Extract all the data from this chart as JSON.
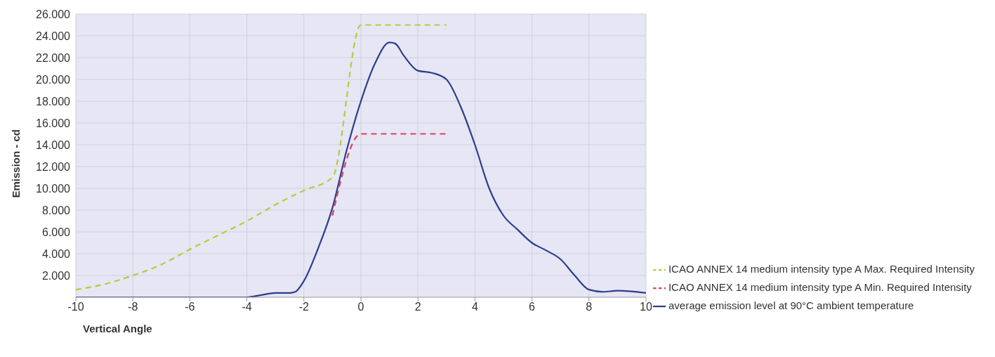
{
  "chart_data": {
    "type": "line",
    "xlabel": "Vertical Angle",
    "ylabel": "Emission - cd",
    "xlim": [
      -10,
      10
    ],
    "xticks": [
      -10,
      -8,
      -6,
      -4,
      -2,
      0,
      2,
      4,
      6,
      8,
      10
    ],
    "ylim": [
      0,
      26000
    ],
    "yticks": [
      {
        "value": 2000,
        "label": "2.000"
      },
      {
        "value": 4000,
        "label": "4.000"
      },
      {
        "value": 6000,
        "label": "6.000"
      },
      {
        "value": 8000,
        "label": "8.000"
      },
      {
        "value": 10000,
        "label": "10.000"
      },
      {
        "value": 12000,
        "label": "12.000"
      },
      {
        "value": 14000,
        "label": "14.000"
      },
      {
        "value": 16000,
        "label": "16.000"
      },
      {
        "value": 18000,
        "label": "18.000"
      },
      {
        "value": 20000,
        "label": "20.000"
      },
      {
        "value": 22000,
        "label": "22.000"
      },
      {
        "value": 24000,
        "label": "24.000"
      },
      {
        "value": 26000,
        "label": "26.000"
      }
    ],
    "grid": true,
    "legend": "right",
    "marker": "none",
    "series": [
      {
        "name": "average emission level at 90°C ambient temperature",
        "color": "#2c3e8c",
        "line_style": "solid",
        "x": [
          -10,
          -4,
          -3.5,
          -3,
          -2.5,
          -2.3,
          -2,
          -1.5,
          -1,
          -0.5,
          0,
          0.5,
          1,
          1.2,
          1.5,
          2,
          2.5,
          3,
          3.5,
          4,
          4.5,
          5,
          5.5,
          6,
          6.5,
          7,
          7.5,
          8,
          8.5,
          9,
          10
        ],
        "values": [
          0,
          0,
          200,
          400,
          400,
          500,
          1500,
          4500,
          8200,
          13500,
          18000,
          21500,
          23400,
          23300,
          22200,
          20800,
          20600,
          20000,
          17500,
          14000,
          10000,
          7500,
          6200,
          5000,
          4300,
          3500,
          2000,
          700,
          500,
          600,
          400
        ]
      },
      {
        "name": "ICAO ANNEX 14 medium intensity type A Min. Required Intensity",
        "color": "#e0405a",
        "line_style": "dashed",
        "x": [
          -1,
          0,
          3
        ],
        "values": [
          7500,
          15000,
          15000
        ]
      },
      {
        "name": "ICAO ANNEX 14 medium intensity type A Max. Required Intensity",
        "color": "#b5cc3a",
        "line_style": "dashed",
        "x": [
          -10,
          -9,
          -8,
          -7,
          -6,
          -5,
          -4,
          -3,
          -2,
          -1,
          0,
          3
        ],
        "values": [
          700,
          1200,
          2000,
          3000,
          4400,
          5700,
          7000,
          8500,
          9800,
          11000,
          25000,
          25000
        ]
      }
    ]
  }
}
